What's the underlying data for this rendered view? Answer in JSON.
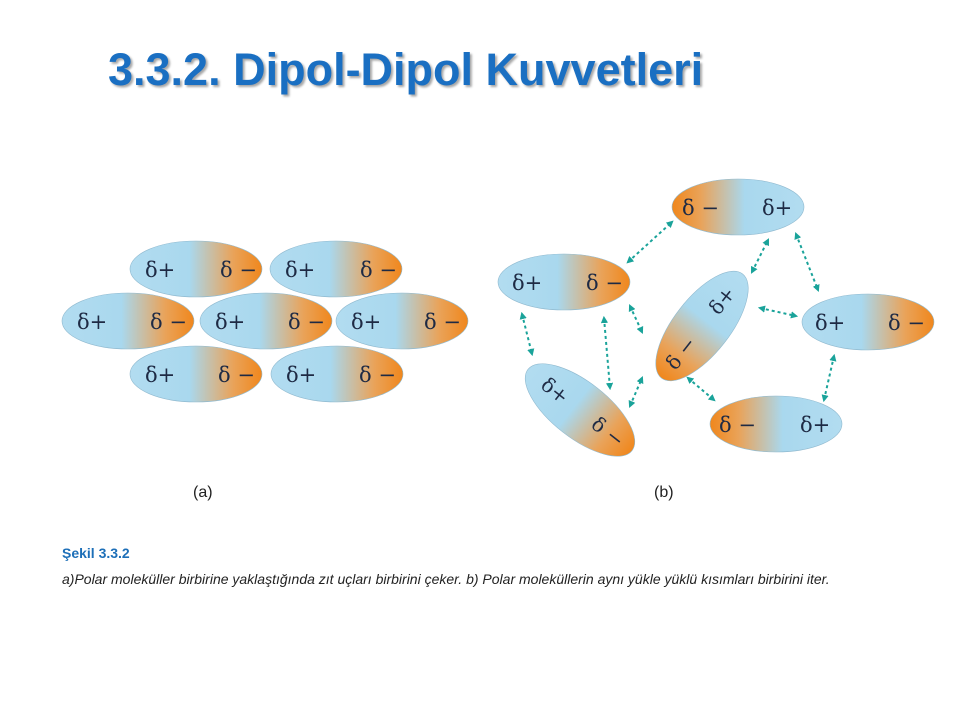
{
  "title": "3.3.2. Dipol-Dipol Kuvvetleri",
  "molecule": {
    "positive_label": "δ+",
    "negative_label": "δ −",
    "positive_color": "#a9d8ee",
    "negative_color": "#f08a22"
  },
  "arrow_color": "#1aa39a",
  "panels": [
    {
      "label": "(a)"
    },
    {
      "label": "(b)"
    }
  ],
  "caption": {
    "title": "Şekil 3.3.2",
    "text": "a)Polar moleküller birbirine yaklaştığında zıt uçları birbirini çeker. b) Polar moleküllerin aynı yükle yüklü kısımları birbirini iter."
  }
}
